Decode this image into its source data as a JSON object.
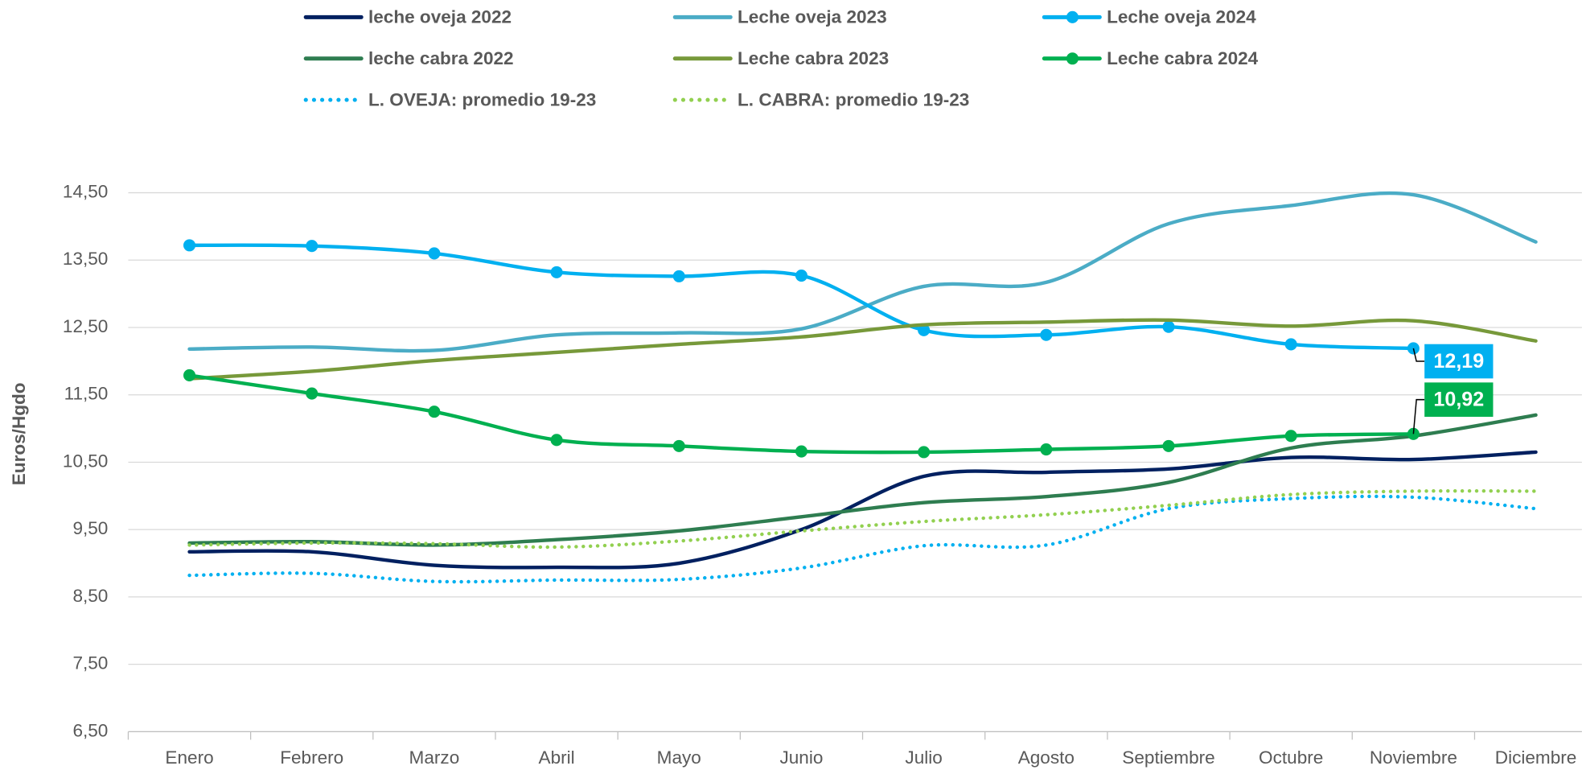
{
  "chart_data": {
    "type": "line",
    "y_label": "Euros/Hgdo",
    "categories": [
      "Enero",
      "Febrero",
      "Marzo",
      "Abril",
      "Mayo",
      "Junio",
      "Julio",
      "Agosto",
      "Septiembre",
      "Octubre",
      "Noviembre",
      "Diciembre"
    ],
    "ylim": [
      6.5,
      14.5
    ],
    "yticks": [
      {
        "value": 6.5,
        "label": "6,50"
      },
      {
        "value": 7.5,
        "label": "7,50"
      },
      {
        "value": 8.5,
        "label": "8,50"
      },
      {
        "value": 9.5,
        "label": "9,50"
      },
      {
        "value": 10.5,
        "label": "10,50"
      },
      {
        "value": 11.5,
        "label": "11,50"
      },
      {
        "value": 12.5,
        "label": "12,50"
      },
      {
        "value": 13.5,
        "label": "13,50"
      },
      {
        "value": 14.5,
        "label": "14,50"
      }
    ],
    "grid": true,
    "series": [
      {
        "name": "leche oveja 2022",
        "color": "#002060",
        "values": [
          9.17,
          9.17,
          8.97,
          8.94,
          9.0,
          9.5,
          10.29,
          10.35,
          10.4,
          10.57,
          10.54,
          10.65
        ]
      },
      {
        "name": "Leche oveja 2023",
        "color": "#4BACC6",
        "values": [
          12.18,
          12.21,
          12.16,
          12.39,
          12.42,
          12.48,
          13.11,
          13.17,
          14.04,
          14.31,
          14.47,
          13.77
        ]
      },
      {
        "name": "Leche oveja 2024",
        "color": "#00B0F0",
        "markers": true,
        "values": [
          13.72,
          13.71,
          13.6,
          13.32,
          13.26,
          13.27,
          12.46,
          12.39,
          12.51,
          12.25,
          12.19,
          null
        ],
        "value_labels": [
          null,
          null,
          null,
          null,
          null,
          null,
          null,
          null,
          null,
          null,
          "12,19",
          null
        ]
      },
      {
        "name": "leche cabra 2022",
        "color": "#2E7D50",
        "values": [
          9.3,
          9.32,
          9.27,
          9.35,
          9.48,
          9.69,
          9.9,
          9.99,
          10.2,
          10.71,
          10.89,
          11.2
        ]
      },
      {
        "name": "Leche cabra 2023",
        "color": "#77993A",
        "values": [
          11.74,
          11.85,
          12.01,
          12.13,
          12.25,
          12.36,
          12.54,
          12.58,
          12.61,
          12.52,
          12.6,
          12.3
        ]
      },
      {
        "name": "Leche cabra 2024",
        "color": "#00B050",
        "markers": true,
        "values": [
          11.79,
          11.52,
          11.25,
          10.83,
          10.74,
          10.66,
          10.65,
          10.69,
          10.74,
          10.89,
          10.92,
          null
        ],
        "value_labels": [
          null,
          null,
          null,
          null,
          null,
          null,
          null,
          null,
          null,
          null,
          "10,92",
          null
        ]
      },
      {
        "name": "L. OVEJA: promedio 19-23",
        "color": "#00B0F0",
        "style": "dotted",
        "values": [
          8.82,
          8.85,
          8.73,
          8.75,
          8.76,
          8.93,
          9.26,
          9.27,
          9.81,
          9.96,
          9.98,
          9.81
        ]
      },
      {
        "name": "L. CABRA: promedio 19-23",
        "color": "#92D050",
        "style": "dotted",
        "values": [
          9.27,
          9.3,
          9.29,
          9.24,
          9.33,
          9.48,
          9.62,
          9.72,
          9.86,
          10.02,
          10.07,
          10.07
        ]
      }
    ]
  }
}
